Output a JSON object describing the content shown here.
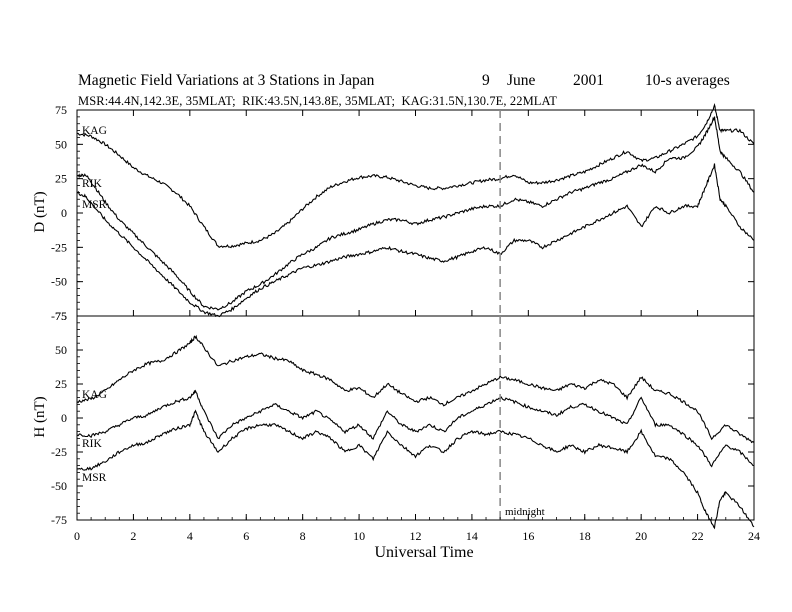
{
  "header": {
    "title": "Magnetic Field Variations at 3 Stations in Japan",
    "day": "9",
    "month": "June",
    "year": "2001",
    "averaging": "10-s averages",
    "stations_line": "MSR:44.4N,142.3E, 35MLAT;  RIK:43.5N,143.8E, 35MLAT;  KAG:31.5N,130.7E, 22MLAT"
  },
  "chart_data": [
    {
      "type": "line",
      "panel": "D",
      "ylabel": "D (nT)",
      "xlabel": "",
      "xlim": [
        0,
        24
      ],
      "ylim": [
        -75,
        75
      ],
      "yticks": [
        75,
        50,
        25,
        0,
        -25,
        -50,
        -75
      ],
      "series": [
        {
          "name": "KAG",
          "x": [
            0,
            0.5,
            1,
            1.5,
            2,
            2.5,
            3,
            3.5,
            4,
            4.5,
            5,
            5.5,
            6,
            6.5,
            7,
            7.5,
            8,
            8.5,
            9,
            9.5,
            10,
            10.5,
            11,
            11.5,
            12,
            12.5,
            13,
            13.5,
            14,
            14.5,
            15,
            15.5,
            16,
            16.5,
            17,
            17.5,
            18,
            18.5,
            19,
            19.5,
            20,
            20.5,
            21,
            21.5,
            22,
            22.3,
            22.6,
            22.8,
            23,
            23.5,
            24
          ],
          "y": [
            58,
            56,
            50,
            42,
            33,
            27,
            22,
            15,
            5,
            -10,
            -24,
            -24,
            -22,
            -20,
            -15,
            -7,
            3,
            12,
            19,
            23,
            26,
            27,
            26,
            23,
            20,
            18,
            18,
            20,
            22,
            24,
            25,
            28,
            22,
            22,
            24,
            27,
            30,
            35,
            40,
            45,
            38,
            40,
            45,
            50,
            56,
            65,
            78,
            60,
            60,
            60,
            50
          ]
        },
        {
          "name": "RIK",
          "x": [
            0,
            0.3,
            0.6,
            1,
            1.5,
            2,
            2.5,
            3,
            3.5,
            4,
            4.5,
            5,
            5.5,
            6,
            6.5,
            7,
            7.5,
            8,
            8.5,
            9,
            9.5,
            10,
            10.5,
            11,
            11.5,
            12,
            12.5,
            13,
            13.5,
            14,
            14.5,
            15,
            15.5,
            16,
            16.5,
            17,
            17.5,
            18,
            18.5,
            19,
            19.5,
            20,
            20.5,
            21,
            21.5,
            22,
            22.3,
            22.6,
            22.8,
            23,
            23.5,
            24
          ],
          "y": [
            27,
            28,
            20,
            8,
            -5,
            -15,
            -25,
            -35,
            -45,
            -57,
            -68,
            -70,
            -65,
            -57,
            -52,
            -45,
            -37,
            -30,
            -25,
            -18,
            -15,
            -12,
            -8,
            -5,
            -5,
            -8,
            -5,
            -3,
            0,
            3,
            5,
            5,
            10,
            8,
            5,
            10,
            15,
            18,
            22,
            25,
            30,
            35,
            30,
            40,
            40,
            48,
            58,
            70,
            45,
            40,
            30,
            15
          ]
        },
        {
          "name": "MSR",
          "x": [
            0,
            0.3,
            0.6,
            1,
            1.5,
            2,
            2.5,
            3,
            3.5,
            4,
            4.5,
            5,
            5.5,
            6,
            6.5,
            7,
            7.5,
            8,
            8.5,
            9,
            9.5,
            10,
            10.5,
            11,
            11.5,
            12,
            12.5,
            13,
            13.5,
            14,
            14.5,
            15,
            15.5,
            16,
            16.5,
            17,
            17.5,
            18,
            18.5,
            19,
            19.5,
            20,
            20.5,
            21,
            21.5,
            22,
            22.3,
            22.6,
            22.8,
            23,
            23.5,
            24
          ],
          "y": [
            15,
            12,
            5,
            -5,
            -15,
            -25,
            -35,
            -45,
            -55,
            -65,
            -72,
            -75,
            -70,
            -62,
            -55,
            -50,
            -45,
            -40,
            -38,
            -35,
            -32,
            -30,
            -28,
            -25,
            -28,
            -30,
            -33,
            -35,
            -32,
            -28,
            -25,
            -30,
            -20,
            -20,
            -25,
            -20,
            -15,
            -10,
            -5,
            0,
            5,
            -10,
            5,
            0,
            5,
            5,
            20,
            35,
            10,
            5,
            -10,
            -20
          ]
        }
      ],
      "labels": [
        "KAG",
        "RIK",
        "MSR"
      ]
    },
    {
      "type": "line",
      "panel": "H",
      "ylabel": "H (nT)",
      "xlabel": "Universal Time",
      "xlim": [
        0,
        24
      ],
      "ylim": [
        -75,
        75
      ],
      "yticks": [
        75,
        50,
        25,
        0,
        -25,
        -50,
        -75
      ],
      "xticks": [
        0,
        2,
        4,
        6,
        8,
        10,
        12,
        14,
        16,
        18,
        20,
        22,
        24
      ],
      "series": [
        {
          "name": "KAG",
          "x": [
            0,
            0.5,
            1,
            1.5,
            2,
            2.5,
            3,
            3.5,
            4,
            4.2,
            4.5,
            5,
            5.5,
            6,
            6.5,
            7,
            7.5,
            8,
            8.5,
            9,
            9.5,
            10,
            10.5,
            11,
            11.5,
            12,
            12.5,
            13,
            13.5,
            14,
            14.5,
            15,
            15.5,
            16,
            16.5,
            17,
            17.5,
            18,
            18.5,
            19,
            19.5,
            20,
            20.5,
            21,
            21.5,
            22,
            22.5,
            23,
            23.5,
            24
          ],
          "y": [
            12,
            14,
            20,
            28,
            35,
            40,
            42,
            48,
            55,
            60,
            52,
            38,
            42,
            45,
            47,
            44,
            42,
            35,
            32,
            28,
            20,
            22,
            15,
            25,
            18,
            12,
            15,
            10,
            15,
            20,
            25,
            30,
            28,
            25,
            22,
            20,
            25,
            22,
            28,
            25,
            15,
            30,
            20,
            18,
            12,
            5,
            -15,
            -5,
            -12,
            -18
          ]
        },
        {
          "name": "RIK",
          "x": [
            0,
            0.5,
            1,
            1.5,
            2,
            2.5,
            3,
            3.5,
            4,
            4.2,
            4.5,
            5,
            5.5,
            6,
            6.5,
            7,
            7.5,
            8,
            8.5,
            9,
            9.5,
            10,
            10.5,
            11,
            11.5,
            12,
            12.5,
            13,
            13.5,
            14,
            14.5,
            15,
            15.5,
            16,
            16.5,
            17,
            17.5,
            18,
            18.5,
            19,
            19.5,
            20,
            20.5,
            21,
            21.5,
            22,
            22.5,
            23,
            23.5,
            24
          ],
          "y": [
            -12,
            -13,
            -10,
            -5,
            0,
            2,
            8,
            12,
            15,
            20,
            5,
            -15,
            -5,
            0,
            5,
            10,
            5,
            0,
            5,
            -2,
            -10,
            -5,
            -15,
            5,
            -5,
            -10,
            -5,
            -10,
            0,
            5,
            10,
            15,
            12,
            8,
            5,
            2,
            8,
            10,
            5,
            0,
            -5,
            15,
            -5,
            -5,
            -12,
            -20,
            -35,
            -20,
            -25,
            -35
          ]
        },
        {
          "name": "MSR",
          "x": [
            0,
            0.5,
            1,
            1.5,
            2,
            2.5,
            3,
            3.5,
            4,
            4.2,
            4.5,
            5,
            5.5,
            6,
            6.5,
            7,
            7.5,
            8,
            8.5,
            9,
            9.5,
            10,
            10.5,
            11,
            11.5,
            12,
            12.5,
            13,
            13.5,
            14,
            14.5,
            15,
            15.5,
            16,
            16.5,
            17,
            17.5,
            18,
            18.5,
            19,
            19.5,
            20,
            20.5,
            21,
            21.5,
            22,
            22.3,
            22.6,
            22.8,
            23,
            23.5,
            24
          ],
          "y": [
            -38,
            -37,
            -32,
            -25,
            -20,
            -18,
            -12,
            -8,
            -5,
            5,
            -10,
            -25,
            -15,
            -8,
            -5,
            -5,
            -10,
            -15,
            -10,
            -15,
            -25,
            -20,
            -30,
            -10,
            -20,
            -28,
            -20,
            -25,
            -15,
            -10,
            -12,
            -10,
            -12,
            -15,
            -20,
            -25,
            -20,
            -25,
            -20,
            -22,
            -25,
            -10,
            -28,
            -30,
            -40,
            -55,
            -70,
            -80,
            -60,
            -55,
            -65,
            -80
          ]
        }
      ],
      "labels": [
        "KAG",
        "RIK",
        "MSR"
      ]
    }
  ],
  "annotations": {
    "midnight_label": "midnight",
    "midnight_ut": 15
  }
}
